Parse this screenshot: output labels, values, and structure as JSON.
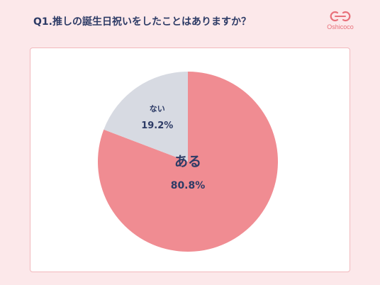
{
  "question": "Q1.推しの誕生日祝いをしたことはありますか？",
  "brand": {
    "name": "Oshicoco",
    "logo_icon": "oshicoco-logo-icon",
    "color": "#e8707a"
  },
  "colors": {
    "background": "#fce8ea",
    "card_border": "#f2b8bd",
    "text": "#2d3b66"
  },
  "chart_data": {
    "type": "pie",
    "title": "",
    "slices": [
      {
        "label": "ある",
        "value": 80.8,
        "display": "80.8%",
        "color": "#f08c92"
      },
      {
        "label": "ない",
        "value": 19.2,
        "display": "19.2%",
        "color": "#d7dae2"
      }
    ],
    "start": "12 o'clock",
    "direction": "clockwise"
  }
}
